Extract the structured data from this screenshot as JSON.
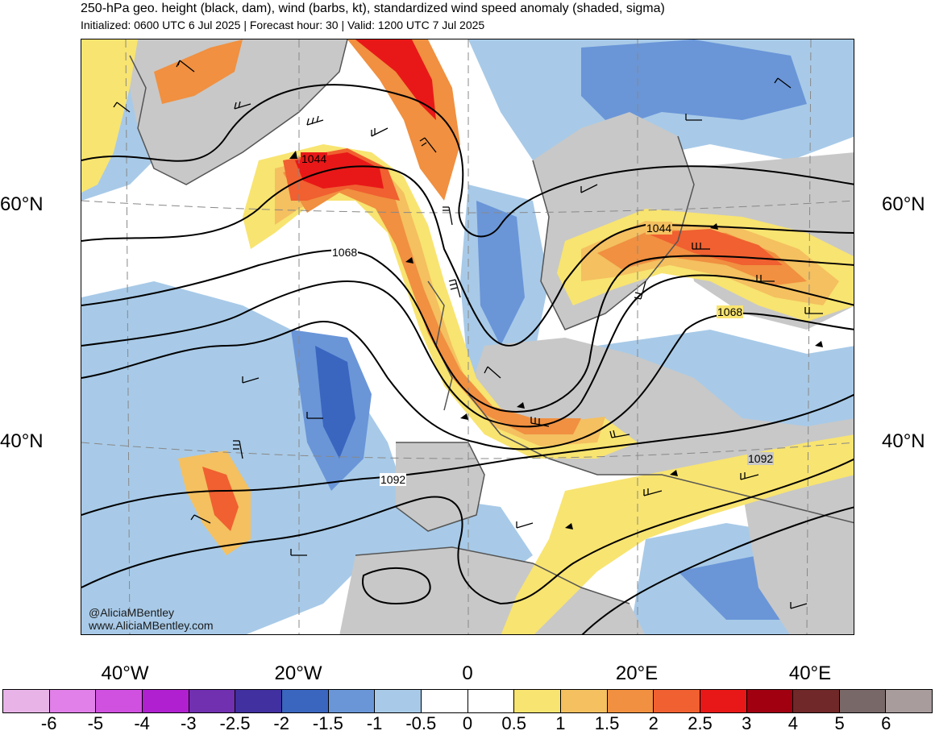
{
  "header": {
    "title": "250-hPa geo. height (black, dam), wind (barbs, kt), standardized wind speed anomaly (shaded, sigma)",
    "subtitle": "Initialized: 0600 UTC 6 Jul 2025 | Forecast hour: 30 | Valid: 1200 UTC 7 Jul 2025"
  },
  "map": {
    "lat_labels": {
      "left_60": "60°N",
      "left_40": "40°N",
      "right_60": "60°N",
      "right_40": "40°N"
    },
    "lon_labels": [
      "40°W",
      "20°W",
      "0",
      "20°E",
      "40°E"
    ],
    "contour_labels": {
      "c1044_west": "1044",
      "c1068_west": "1068",
      "c1092_west": "1092",
      "c1044_east": "1044",
      "c1068_east": "1068",
      "c1092_east": "1092"
    },
    "watermark": {
      "handle": "@AliciaMBentley",
      "site": "www.AliciaMBentley.com"
    },
    "colors": {
      "land_gray": "#c8c8c8",
      "coast": "#555555",
      "contour": "#000000"
    }
  },
  "colorbar": {
    "colors": [
      "#e8b4e8",
      "#e080e8",
      "#d050e0",
      "#b020d0",
      "#7030b0",
      "#4030a0",
      "#3a66c0",
      "#6a96d8",
      "#a8cae8",
      "#ffffff",
      "#ffffff",
      "#f8e470",
      "#f4c060",
      "#f09040",
      "#f06030",
      "#e81818",
      "#a00010",
      "#702828",
      "#786868",
      "#a89c9c"
    ],
    "tick_labels": [
      "-6",
      "-5",
      "-4",
      "-3",
      "-2.5",
      "-2",
      "-1.5",
      "-1",
      "-0.5",
      "0",
      "0.5",
      "1",
      "1.5",
      "2",
      "2.5",
      "3",
      "4",
      "5",
      "6"
    ]
  }
}
